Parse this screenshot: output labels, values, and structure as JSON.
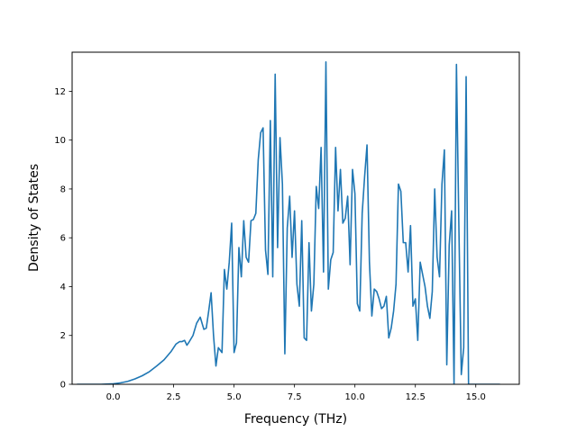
{
  "chart_data": {
    "type": "line",
    "xlabel": "Frequency (THz)",
    "ylabel": "Density of States",
    "xlim": [
      -1.7,
      16.8
    ],
    "ylim": [
      0,
      13.6
    ],
    "grid": false,
    "xticks": [
      0.0,
      2.5,
      5.0,
      7.5,
      10.0,
      12.5,
      15.0
    ],
    "xtick_labels": [
      "0.0",
      "2.5",
      "5.0",
      "7.5",
      "10.0",
      "12.5",
      "15.0"
    ],
    "yticks": [
      0,
      2,
      4,
      6,
      8,
      10,
      12
    ],
    "ytick_labels": [
      "0",
      "2",
      "4",
      "6",
      "8",
      "10",
      "12"
    ],
    "line_color": "#1f77b4",
    "series": [
      {
        "x": [
          -1.5,
          -1.0,
          -0.5,
          0.0,
          0.3,
          0.6,
          0.9,
          1.2,
          1.5,
          1.8,
          2.1,
          2.4,
          2.6,
          2.75,
          2.85,
          2.95,
          3.05,
          3.15,
          3.3,
          3.45,
          3.6,
          3.75,
          3.85,
          3.95,
          4.05,
          4.15,
          4.25,
          4.35,
          4.5,
          4.6,
          4.7,
          4.8,
          4.9,
          5.0,
          5.1,
          5.2,
          5.3,
          5.4,
          5.5,
          5.6,
          5.7,
          5.8,
          5.9,
          6.0,
          6.1,
          6.2,
          6.3,
          6.4,
          6.5,
          6.6,
          6.7,
          6.8,
          6.9,
          7.0,
          7.1,
          7.2,
          7.3,
          7.4,
          7.5,
          7.6,
          7.7,
          7.8,
          7.9,
          8.0,
          8.1,
          8.2,
          8.3,
          8.4,
          8.5,
          8.6,
          8.7,
          8.8,
          8.9,
          9.0,
          9.1,
          9.2,
          9.3,
          9.4,
          9.5,
          9.6,
          9.7,
          9.8,
          9.9,
          10.0,
          10.1,
          10.2,
          10.3,
          10.4,
          10.5,
          10.6,
          10.7,
          10.8,
          10.9,
          11.0,
          11.1,
          11.2,
          11.3,
          11.4,
          11.5,
          11.6,
          11.7,
          11.8,
          11.9,
          12.0,
          12.1,
          12.2,
          12.3,
          12.4,
          12.5,
          12.6,
          12.7,
          12.8,
          12.9,
          13.0,
          13.1,
          13.2,
          13.3,
          13.4,
          13.5,
          13.6,
          13.7,
          13.8,
          13.9,
          14.0,
          14.1,
          14.2,
          14.3,
          14.4,
          14.5,
          14.6,
          14.7,
          14.8,
          15.0,
          15.5,
          16.0
        ],
        "y": [
          0,
          0,
          0,
          0.02,
          0.06,
          0.12,
          0.22,
          0.35,
          0.52,
          0.75,
          1.0,
          1.35,
          1.65,
          1.75,
          1.75,
          1.8,
          1.6,
          1.75,
          2.0,
          2.5,
          2.75,
          2.25,
          2.3,
          3.0,
          3.75,
          2.0,
          0.75,
          1.5,
          1.3,
          4.7,
          3.9,
          5.0,
          6.6,
          1.3,
          1.7,
          5.6,
          4.4,
          6.7,
          5.2,
          5.0,
          6.7,
          6.75,
          7.0,
          9.2,
          10.3,
          10.5,
          5.5,
          4.5,
          10.8,
          4.4,
          12.7,
          5.6,
          10.1,
          8.2,
          1.25,
          6.4,
          7.7,
          5.2,
          7.1,
          4.1,
          3.2,
          6.7,
          1.9,
          1.8,
          5.8,
          3.0,
          4.1,
          8.1,
          7.2,
          9.7,
          4.6,
          13.2,
          3.9,
          5.1,
          5.4,
          9.7,
          7.1,
          8.8,
          6.6,
          6.8,
          7.7,
          4.9,
          8.8,
          7.8,
          3.3,
          3.0,
          7.0,
          8.5,
          9.8,
          5.0,
          2.8,
          3.9,
          3.8,
          3.5,
          3.1,
          3.2,
          3.6,
          1.9,
          2.3,
          3.0,
          4.1,
          8.2,
          7.9,
          5.8,
          5.8,
          4.6,
          6.5,
          3.2,
          3.5,
          1.8,
          5.0,
          4.5,
          4.0,
          3.2,
          2.7,
          3.8,
          8.0,
          5.2,
          4.4,
          8.2,
          9.6,
          0.8,
          5.7,
          7.1,
          0,
          13.1,
          6.5,
          0.4,
          1.5,
          12.6,
          0,
          0,
          0,
          0,
          0
        ]
      }
    ]
  }
}
